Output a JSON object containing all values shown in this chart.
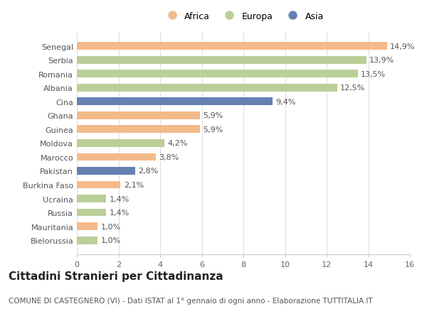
{
  "countries": [
    "Senegal",
    "Serbia",
    "Romania",
    "Albania",
    "Cina",
    "Ghana",
    "Guinea",
    "Moldova",
    "Marocco",
    "Pakistan",
    "Burkina Faso",
    "Ucraina",
    "Russia",
    "Mauritania",
    "Bielorussia"
  ],
  "values": [
    14.9,
    13.9,
    13.5,
    12.5,
    9.4,
    5.9,
    5.9,
    4.2,
    3.8,
    2.8,
    2.1,
    1.4,
    1.4,
    1.0,
    1.0
  ],
  "continents": [
    "Africa",
    "Europa",
    "Europa",
    "Europa",
    "Asia",
    "Africa",
    "Africa",
    "Europa",
    "Africa",
    "Asia",
    "Africa",
    "Europa",
    "Europa",
    "Africa",
    "Europa"
  ],
  "colors": {
    "Africa": "#F5BA8A",
    "Europa": "#BACF98",
    "Asia": "#6680B3"
  },
  "title": "Cittadini Stranieri per Cittadinanza",
  "subtitle": "COMUNE DI CASTEGNERO (VI) - Dati ISTAT al 1° gennaio di ogni anno - Elaborazione TUTTITALIA.IT",
  "xlim": [
    0,
    16
  ],
  "xticks": [
    0,
    2,
    4,
    6,
    8,
    10,
    12,
    14,
    16
  ],
  "background_color": "#ffffff",
  "grid_color": "#e0e0e0",
  "bar_height": 0.55,
  "title_fontsize": 11,
  "subtitle_fontsize": 7.5,
  "label_fontsize": 8,
  "tick_fontsize": 8,
  "legend_fontsize": 9
}
